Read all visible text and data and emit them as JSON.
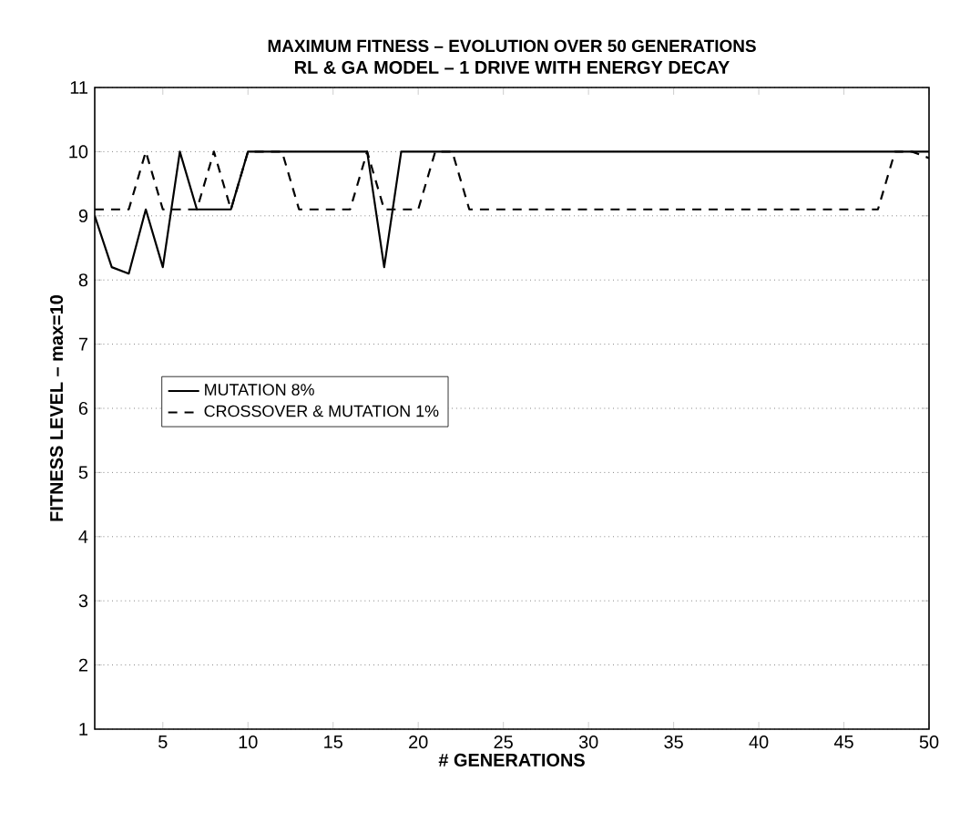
{
  "chart_data": {
    "type": "line",
    "title": "MAXIMUM FITNESS – EVOLUTION OVER 50 GENERATIONS",
    "subtitle": "RL & GA MODEL – 1 DRIVE WITH ENERGY DECAY",
    "xlabel": "# GENERATIONS",
    "ylabel": "FITNESS LEVEL – max=10",
    "x": [
      1,
      2,
      3,
      4,
      5,
      6,
      7,
      8,
      9,
      10,
      11,
      12,
      13,
      14,
      15,
      16,
      17,
      18,
      19,
      20,
      21,
      22,
      23,
      24,
      25,
      26,
      27,
      28,
      29,
      30,
      31,
      32,
      33,
      34,
      35,
      36,
      37,
      38,
      39,
      40,
      41,
      42,
      43,
      44,
      45,
      46,
      47,
      48,
      49,
      50
    ],
    "series": [
      {
        "name": "MUTATION 8%",
        "color": "#000000",
        "line_style": "solid",
        "values": [
          9.0,
          8.2,
          8.1,
          9.1,
          8.2,
          10,
          9.1,
          9.1,
          9.1,
          10,
          10,
          10,
          10,
          10,
          10,
          10,
          10,
          8.2,
          10,
          10,
          10,
          10,
          10,
          10,
          10,
          10,
          10,
          10,
          10,
          10,
          10,
          10,
          10,
          10,
          10,
          10,
          10,
          10,
          10,
          10,
          10,
          10,
          10,
          10,
          10,
          10,
          10,
          10,
          10,
          10
        ]
      },
      {
        "name": "CROSSOVER & MUTATION 1%",
        "color": "#000000",
        "line_style": "dashed",
        "values": [
          9.1,
          9.1,
          9.1,
          10,
          9.1,
          9.1,
          9.1,
          10,
          9.1,
          10,
          10,
          10,
          9.1,
          9.1,
          9.1,
          9.1,
          10,
          9.1,
          9.1,
          9.1,
          10,
          10,
          9.1,
          9.1,
          9.1,
          9.1,
          9.1,
          9.1,
          9.1,
          9.1,
          9.1,
          9.1,
          9.1,
          9.1,
          9.1,
          9.1,
          9.1,
          9.1,
          9.1,
          9.1,
          9.1,
          9.1,
          9.1,
          9.1,
          9.1,
          9.1,
          9.1,
          10,
          10,
          9.9
        ]
      }
    ],
    "xlim": [
      1,
      50
    ],
    "ylim": [
      1,
      11
    ],
    "xticks": [
      5,
      10,
      15,
      20,
      25,
      30,
      35,
      40,
      45,
      50
    ],
    "yticks": [
      1,
      2,
      3,
      4,
      5,
      6,
      7,
      8,
      9,
      10,
      11
    ],
    "grid": "y",
    "legend": "center left",
    "marker": "none"
  }
}
